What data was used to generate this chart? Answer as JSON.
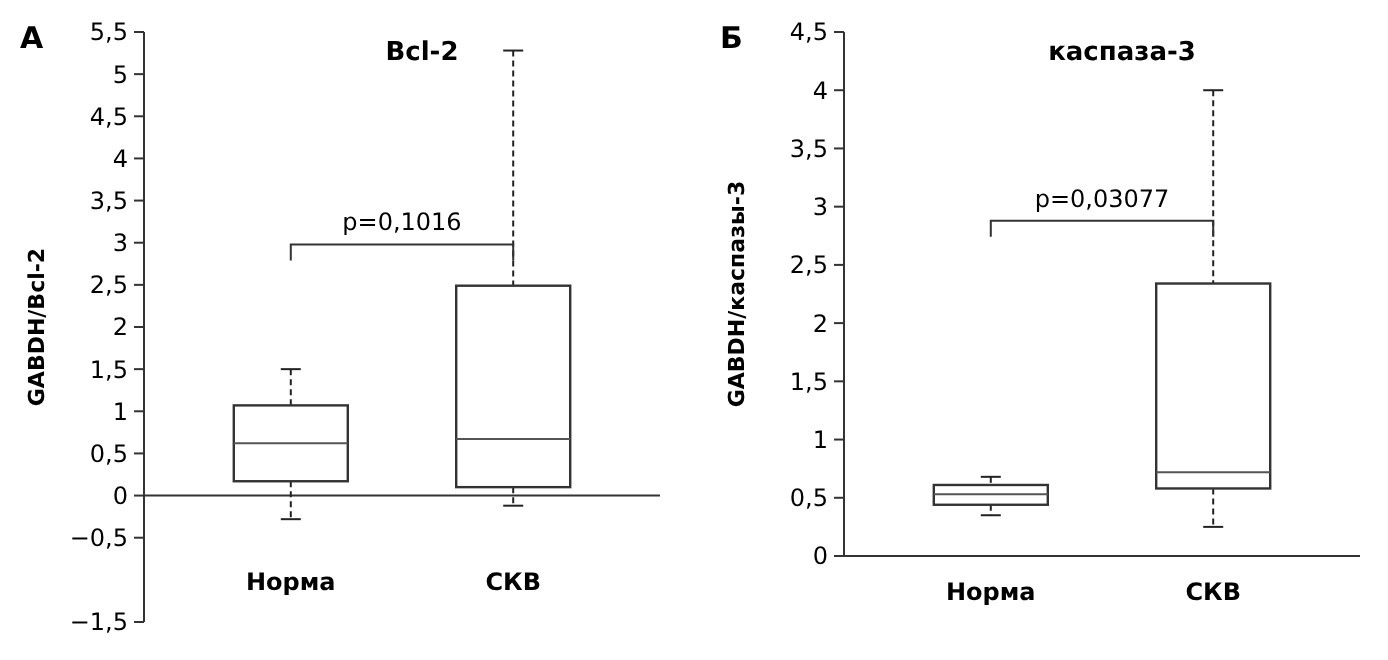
{
  "chart_data": [
    {
      "type": "box",
      "title": "Bcl-2",
      "ylabel": "GABDH/Bcl-2",
      "categories": [
        "Норма",
        "СКВ"
      ],
      "boxes": [
        {
          "low": -0.28,
          "q1": 0.17,
          "median": 0.62,
          "q3": 1.07,
          "high": 1.5
        },
        {
          "low": -0.12,
          "q1": 0.1,
          "median": 0.67,
          "q3": 2.49,
          "high": 5.28
        }
      ],
      "ylim": [
        -1.5,
        5.5
      ],
      "yticks": [
        {
          "value": -1.5,
          "label": "−1,5"
        },
        {
          "value": -0.5,
          "label": "−0,5"
        },
        0,
        {
          "value": 0.5,
          "label": "0,5"
        },
        1,
        {
          "value": 1.5,
          "label": "1,5"
        },
        2,
        {
          "value": 2.5,
          "label": "2,5"
        },
        3,
        {
          "value": 3.5,
          "label": "3,5"
        },
        4,
        {
          "value": 4.5,
          "label": "4,5"
        },
        5,
        {
          "value": 5.5,
          "label": "5,5"
        }
      ],
      "annotations": [
        "А",
        "p=0,1016"
      ]
    },
    {
      "type": "box",
      "title": "каспаза-3",
      "ylabel": "GABDH/каспазы-3",
      "categories": [
        "Норма",
        "СКВ"
      ],
      "boxes": [
        {
          "low": 0.35,
          "q1": 0.44,
          "median": 0.53,
          "q3": 0.61,
          "high": 0.68
        },
        {
          "low": 0.25,
          "q1": 0.58,
          "median": 0.72,
          "q3": 2.34,
          "high": 4.0
        }
      ],
      "ylim": [
        0,
        4.5
      ],
      "yticks": [
        0,
        {
          "value": 0.5,
          "label": "0,5"
        },
        1,
        {
          "value": 1.5,
          "label": "1,5"
        },
        2,
        {
          "value": 2.5,
          "label": "2,5"
        },
        3,
        {
          "value": 3.5,
          "label": "3,5"
        },
        4,
        {
          "value": 4.5,
          "label": "4,5"
        }
      ],
      "annotations": [
        "Б",
        "p=0,03077"
      ]
    }
  ]
}
